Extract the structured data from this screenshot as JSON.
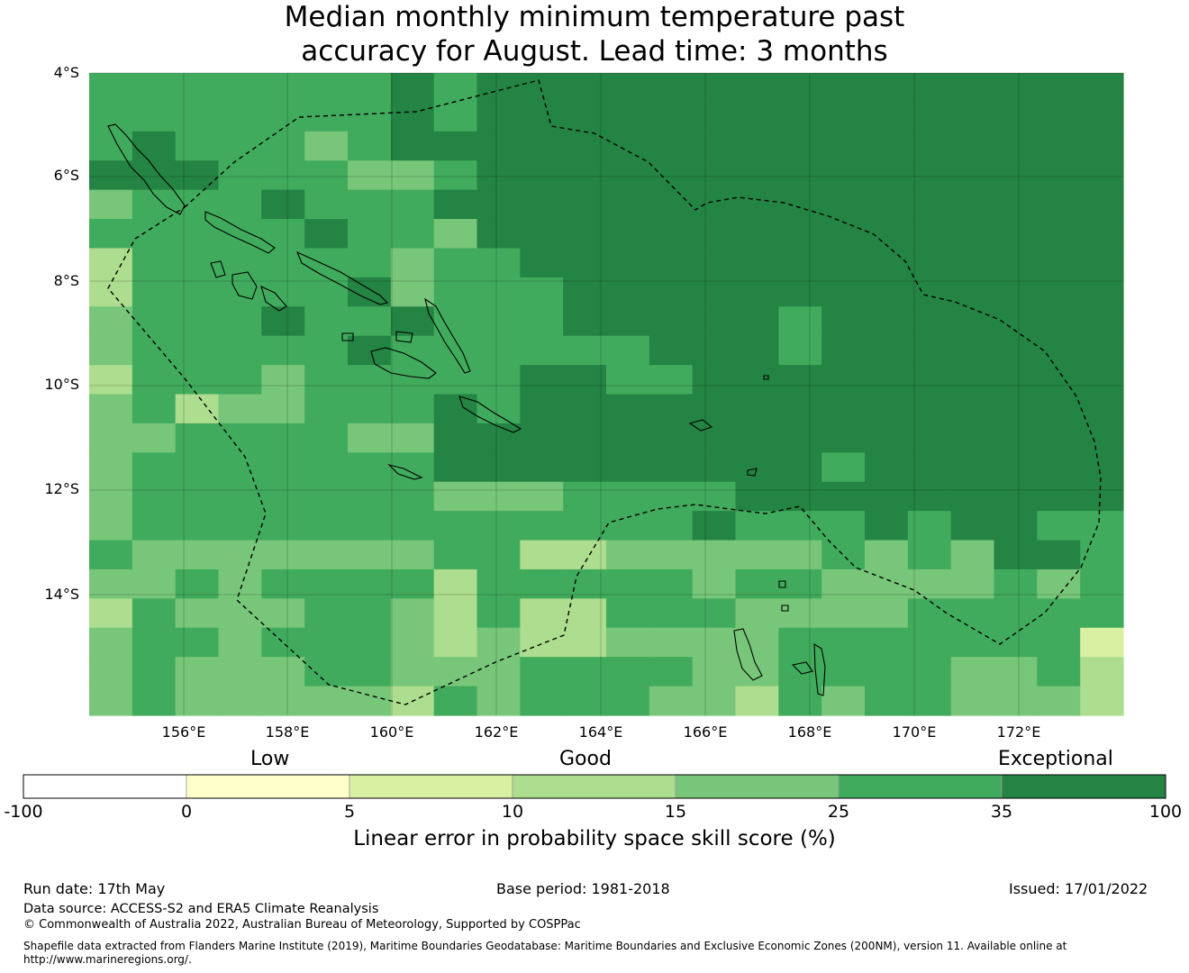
{
  "title": {
    "line1": "Median monthly minimum temperature past",
    "line2": "accuracy for August. Lead time: 3 months"
  },
  "map": {
    "lat_labels": [
      "4°S",
      "6°S",
      "8°S",
      "10°S",
      "12°S",
      "14°S"
    ],
    "lon_labels": [
      "156°E",
      "158°E",
      "160°E",
      "162°E",
      "164°E",
      "166°E",
      "168°E",
      "170°E",
      "172°E"
    ],
    "lat_range": [
      -16.3,
      -4.0
    ],
    "lon_range": [
      154.2,
      174.0
    ],
    "grid_cell_deg": 0.833
  },
  "legend": {
    "categories": [
      "Low",
      "Good",
      "Exceptional"
    ],
    "ticks": [
      "-100",
      "0",
      "5",
      "10",
      "15",
      "25",
      "35",
      "100"
    ],
    "colors": [
      "#ffffff",
      "#ffffcc",
      "#d9f0a3",
      "#addd8e",
      "#78c679",
      "#41ab5d",
      "#238443"
    ],
    "label": "Linear error in probability space skill score (%)"
  },
  "footer": {
    "run_date": "Run date: 17th May",
    "base_period": "Base period: 1981-2018",
    "issued": "Issued: 17/01/2022",
    "data_source": "Data source: ACCESS-S2 and ERA5 Climate Reanalysis",
    "copyright": "© Commonwealth of Australia 2022, Australian Bureau of Meteorology, Supported by COSPPac",
    "shapefile_line1": "Shapefile data extracted from Flanders Marine Institute (2019), Maritime Boundaries Geodatabase: Maritime Boundaries and Exclusive Economic Zones (200NM), version 11. Available online at",
    "shapefile_line2": "http://www.marineregions.org/."
  }
}
